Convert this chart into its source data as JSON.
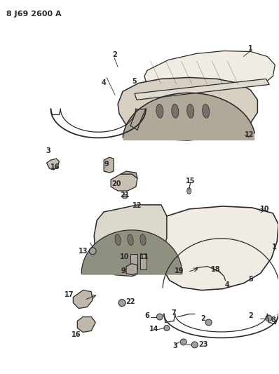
{
  "title": "8 J69 2600 A",
  "bg_color": "#ffffff",
  "line_color": "#2a2a2a",
  "title_fontsize": 8,
  "label_fontsize": 7,
  "fig_width": 3.98,
  "fig_height": 5.33,
  "dpi": 100
}
